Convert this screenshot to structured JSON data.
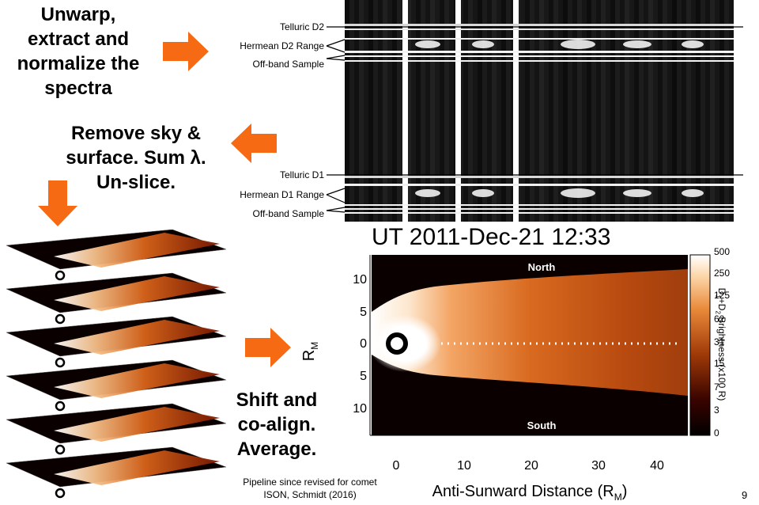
{
  "steps": {
    "unwarp": [
      "Unwarp,",
      "extract and",
      "normalize the",
      "spectra"
    ],
    "remove": [
      "Remove sky &",
      "surface. Sum λ.",
      "Un-slice."
    ],
    "shift": [
      "Shift and",
      "co-align.",
      "Average."
    ]
  },
  "spectra_labels": {
    "telluric_d2": "Telluric D2",
    "hermean_d2": "Hermean D2 Range",
    "offband_1": "Off-band Sample",
    "telluric_d1": "Telluric D1",
    "hermean_d1": "Hermean D1 Range",
    "offband_2": "Off-band Sample"
  },
  "map": {
    "title": "UT 2011-Dec-21 12:33",
    "north": "North",
    "south": "South",
    "xlabel": "Anti-Sunward Distance (R",
    "xlabel_sub": "M",
    "xlabel_end": ")",
    "ylabel": "R",
    "ylabel_sub": "M",
    "xticks": [
      "0",
      "10",
      "20",
      "30",
      "40"
    ],
    "yticks": [
      "10",
      "5",
      "0",
      "5",
      "10"
    ],
    "colorbar_ticks": [
      "500",
      "250",
      "125",
      "62",
      "31",
      "15",
      "7",
      "3",
      "0"
    ],
    "colorbar_label_1": "D",
    "colorbar_label_1_sub": "1",
    "colorbar_label_2": "+D",
    "colorbar_label_2_sub": "2",
    "colorbar_label_3": " Brightness (x100 R)"
  },
  "credit": [
    "Pipeline since revised for comet",
    "ISON, Schmidt (2016)"
  ],
  "slide_number": "9",
  "colors": {
    "arrow": "#f56a12",
    "map_bright": "#fff1dc",
    "map_mid": "#c85a12",
    "map_dark": "#0a0000"
  }
}
